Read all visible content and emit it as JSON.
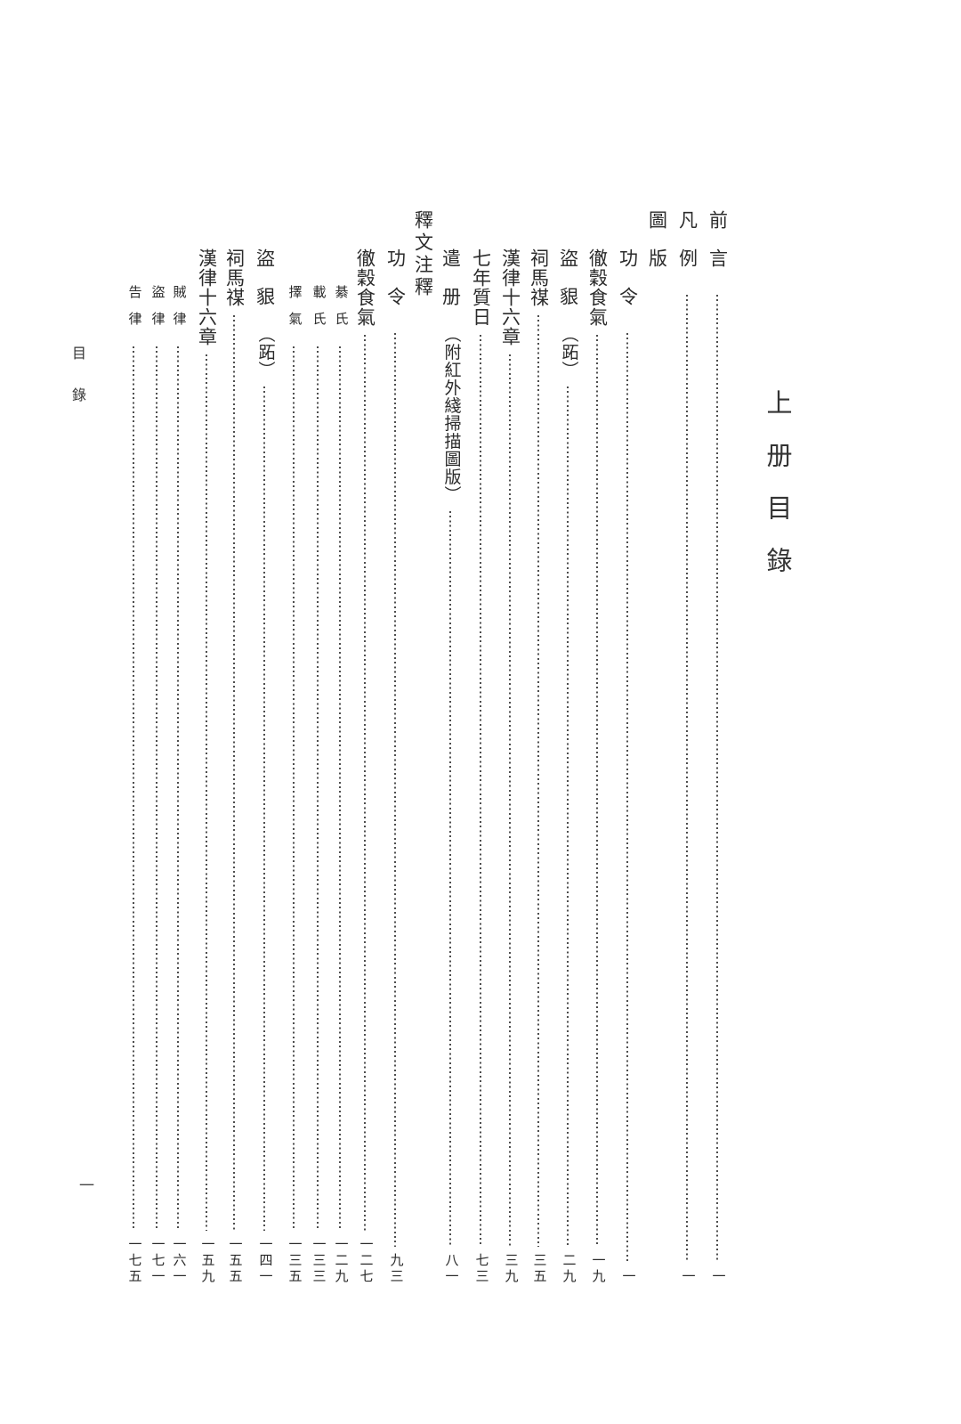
{
  "page": {
    "big_title": "上册目錄",
    "side_header": "目錄",
    "folio": "一"
  },
  "toc": {
    "entries": [
      {
        "title": "前言",
        "page": "一"
      },
      {
        "title": "凡例",
        "page": "一"
      },
      {
        "title": "圖版",
        "type": "header"
      },
      {
        "title": "功令",
        "page": "一"
      },
      {
        "title": "徹穀食氣",
        "page": "一九"
      },
      {
        "title": "盜貇",
        "note": "（跖）",
        "page": "二九"
      },
      {
        "title": "祠馬禖",
        "page": "三五"
      },
      {
        "title": "漢律十六章",
        "page": "三九"
      },
      {
        "title": "七年質日",
        "page": "七三"
      },
      {
        "title": "遣册",
        "note": "（附紅外綫掃描圖版）",
        "page": "八一"
      },
      {
        "title": "釋文注釋",
        "type": "header"
      },
      {
        "title": "功令",
        "page": "九三"
      },
      {
        "title": "徹穀食氣",
        "page": "一二七"
      },
      {
        "title": "綦氏",
        "page": "一二九",
        "sub": true
      },
      {
        "title": "載氏",
        "page": "一三三",
        "sub": true
      },
      {
        "title": "擇氣",
        "page": "一三五",
        "sub": true
      },
      {
        "title": "盜貇",
        "note": "（跖）",
        "page": "一四一"
      },
      {
        "title": "祠馬禖",
        "page": "一五五"
      },
      {
        "title": "漢律十六章",
        "page": "一五九"
      },
      {
        "title": "賊律",
        "page": "一六一",
        "sub": true
      },
      {
        "title": "盜律",
        "page": "一七一",
        "sub": true
      },
      {
        "title": "告律",
        "page": "一七五",
        "sub": true
      }
    ]
  }
}
